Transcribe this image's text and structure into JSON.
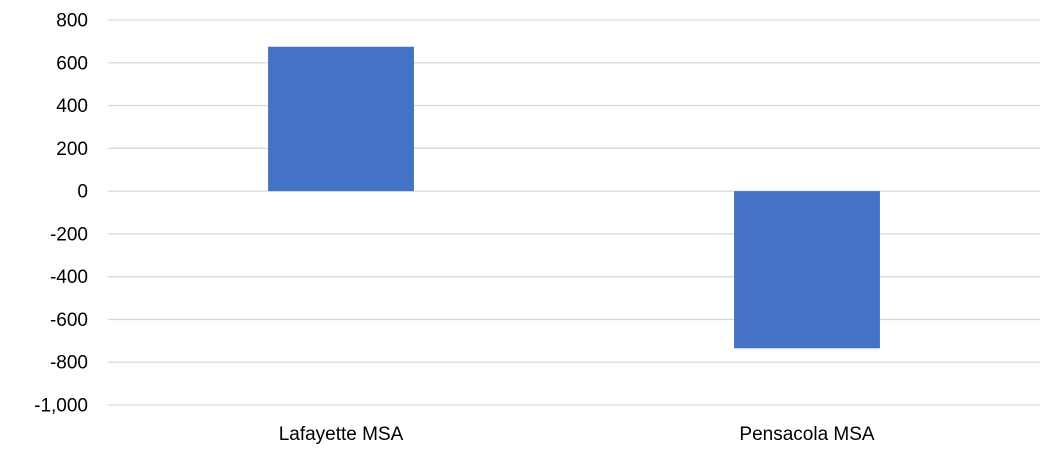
{
  "chart_data": {
    "type": "bar",
    "categories": [
      "Lafayette MSA",
      "Pensacola MSA"
    ],
    "values": [
      675,
      -735
    ],
    "ylim": [
      -1000,
      800
    ],
    "yticks": [
      800,
      600,
      400,
      200,
      0,
      -200,
      -400,
      -600,
      -800,
      -1000
    ],
    "ytick_labels": [
      "800",
      "600",
      "400",
      "200",
      "0",
      "-200",
      "-400",
      "-600",
      "-800",
      "-1,000"
    ],
    "grid": true,
    "legend": "none",
    "colors": {
      "bar": "#4472C4",
      "grid": "#D9D9D9"
    }
  }
}
